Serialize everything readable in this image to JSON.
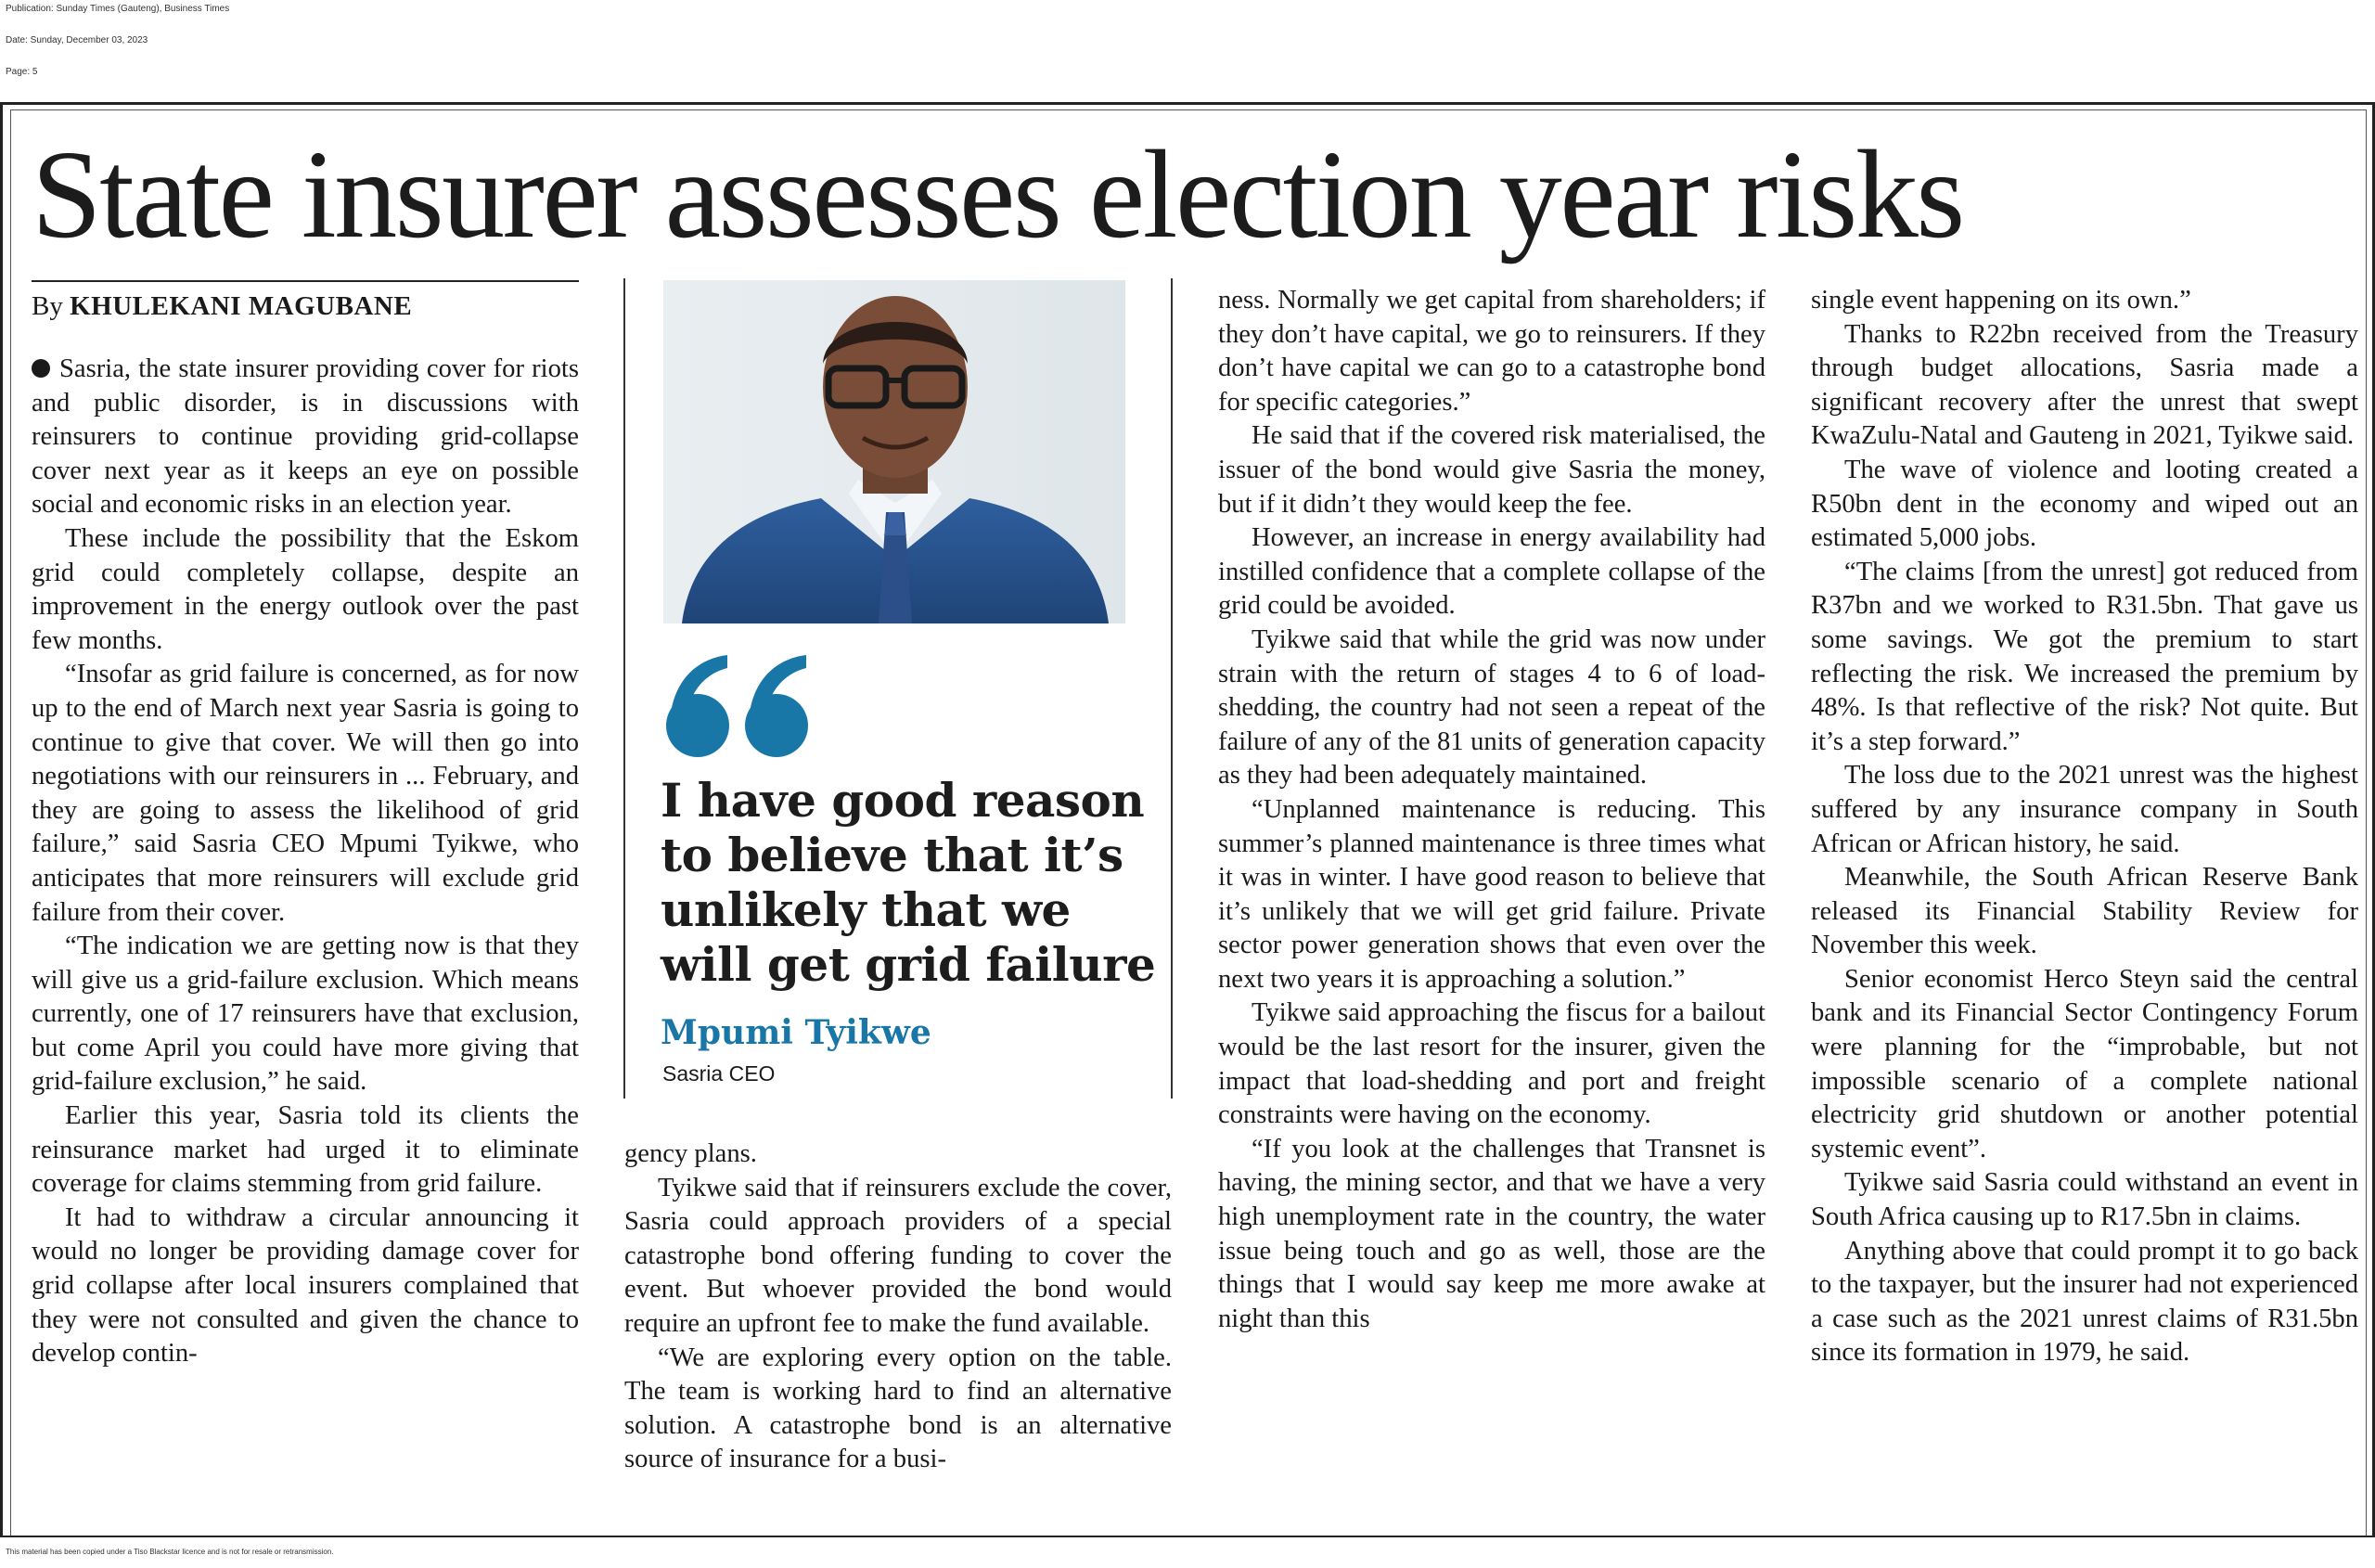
{
  "meta": {
    "publication": "Publication: Sunday Times (Gauteng), Business Times",
    "date": "Date: Sunday, December 03, 2023",
    "page": "Page: 5"
  },
  "article": {
    "headline": "State insurer assesses election year risks",
    "byline_prefix": "By ",
    "byline_author": "KHULEKANI MAGUBANE",
    "col1": [
      "Sasria, the state insurer providing cover for riots and public disorder, is in discussions with reinsurers to continue providing grid-collapse cover next year as it keeps an eye on possible social and economic risks in an election year.",
      "These include the possibility that the Eskom grid could completely collapse, despite an improvement in the energy outlook over the past few months.",
      "“Insofar as grid failure is concerned, as for now up to the end of March next year Sasria is going to continue to give that cover. We will then go into negotiations with our reinsurers in ... February, and they are going to assess the likelihood of grid failure,” said Sasria CEO Mpumi Tyikwe, who anticipates that more reinsurers will exclude grid failure from their cover.",
      "“The indication we are getting now is that they will give us a grid-failure exclusion. Which means currently, one of 17 reinsurers have that exclusion, but come April you could have more giving that grid-failure exclusion,” he said.",
      "Earlier this year, Sasria told its clients the reinsurance market had urged it to eliminate coverage for claims stemming from grid failure.",
      "It had to withdraw a circular announcing it would no longer be providing damage cover for grid collapse after local insurers complained that they were not consulted and given the chance to develop contin-"
    ],
    "col2": [
      "gency plans.",
      "Tyikwe said that if reinsurers exclude the cover, Sasria could approach providers of a special catastrophe bond offering funding to cover the event. But whoever provided the bond would require an upfront fee to make the fund available.",
      "“We are exploring every option on the table. The team is working hard to find an alternative solution. A catastrophe bond is an alternative source of insurance for a busi-"
    ],
    "col3": [
      "ness. Normally we get capital from shareholders; if they don’t have capital, we go to reinsurers. If they don’t have capital we can go to a catastrophe bond for specific categories.”",
      "He said that if the covered risk materialised, the issuer of the bond would give Sasria the money, but if it didn’t they would keep the fee.",
      "However, an increase in energy availability had instilled confidence that a complete collapse of the grid could be avoided.",
      "Tyikwe said that while the grid was now under strain with the return of stages 4 to 6 of load-shedding, the country had not seen a repeat of the failure of any of the 81 units of generation capacity as they had been adequately maintained.",
      "“Unplanned maintenance is reducing. This summer’s planned maintenance is three times what it was in winter. I have good reason to believe that it’s unlikely that we will get grid failure. Private sector power generation shows that even over the next two years it is approaching a solution.”",
      "Tyikwe said approaching the fiscus for a bailout would be the last resort for the insurer, given the impact that load-shedding and port and freight constraints were having on the economy.",
      "“If you look at the challenges that Transnet is having, the mining sector, and that we have a very high unemployment rate in the country, the water issue being touch and go as well, those are the things that I would say keep me more awake at night than this"
    ],
    "col4": [
      "single event happening on its own.”",
      "Thanks to R22bn received from the Treasury through budget allocations, Sasria made a significant recovery after the unrest that swept KwaZulu-Natal and Gauteng in 2021, Tyikwe said.",
      "The wave of violence and looting created a R50bn dent in the economy and wiped out an estimated 5,000 jobs.",
      "“The claims [from the unrest] got reduced from R37bn and we worked to R31.5bn. That gave us some savings. We got the premium to start reflecting the risk. We increased the premium by 48%. Is that reflective of the risk? Not quite. But it’s a step forward.”",
      "The loss due to the 2021 unrest was the highest suffered by any insurance company in South African or African history, he said.",
      "Meanwhile, the South African Reserve Bank released its Financial Stability Review for November this week.",
      "Senior economist Herco Steyn said the central bank and its Financial Sector Contingency Forum were planning for the “improbable, but not impossible scenario of a complete national electricity grid shutdown or another potential systemic event”.",
      "Tyikwe said Sasria could withstand an event in South Africa causing up to R17.5bn in claims.",
      "Anything above that could prompt it to go back to the taxpayer, but the insurer had not experienced a case such as the 2021 unrest claims of R31.5bn since its formation in 1979, he said."
    ]
  },
  "pull_quote": {
    "text": "I have good reason to believe that it’s unlikely that we will get grid failure",
    "name": "Mpumi Tyikwe",
    "role": "Sasria CEO",
    "accent_color": "#1877a6"
  },
  "footer": {
    "note": "This material has been copied under a Tiso Blackstar licence and is not for resale or retransmission."
  }
}
